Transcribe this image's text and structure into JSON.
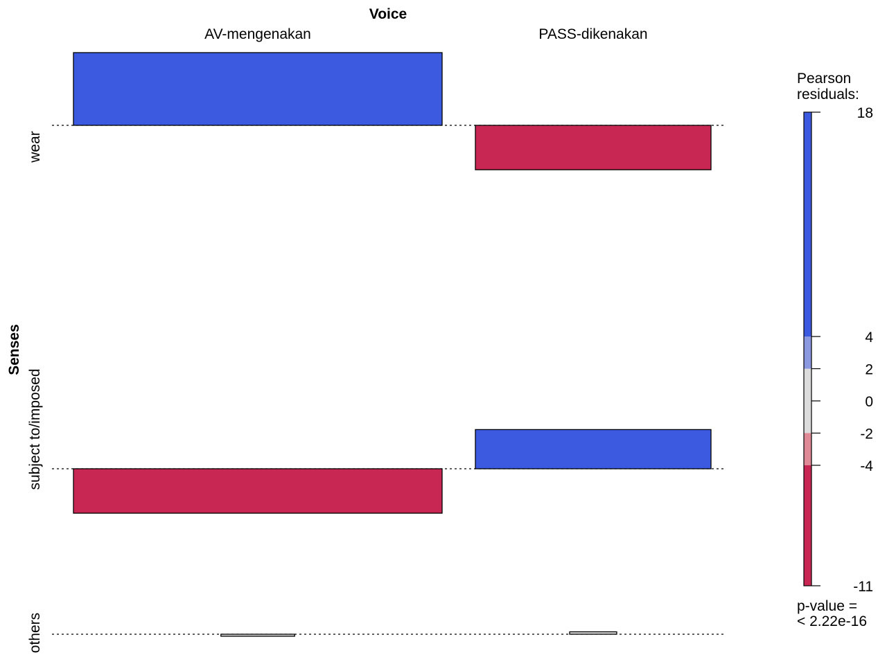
{
  "chart_data": {
    "type": "association",
    "title": "",
    "col_variable": "Voice",
    "row_variable": "Senses",
    "columns": [
      "AV-mengenakan",
      "PASS-dikenakan"
    ],
    "rows": [
      "wear",
      "subject to/imposed",
      "others"
    ],
    "residuals": [
      [
        18,
        -11
      ],
      [
        -11,
        9.7
      ],
      [
        -0.5,
        0.6
      ]
    ],
    "legend": {
      "title_line1": "Pearson",
      "title_line2": "residuals:",
      "range": [
        -11,
        18
      ],
      "ticks": [
        "18",
        "4",
        "2",
        "0",
        "-2",
        "-4",
        "-11"
      ],
      "tick_values": [
        18,
        4,
        2,
        0,
        -2,
        -4,
        -11
      ],
      "pvalue_line1": "p-value =",
      "pvalue_line2": "< 2.22e-16"
    },
    "colors": {
      "strong_positive": "#3b5ae0",
      "moderate_positive": "#8c98e0",
      "neutral": "#dcdcdc",
      "moderate_negative": "#e08a98",
      "strong_negative": "#c82754"
    }
  }
}
